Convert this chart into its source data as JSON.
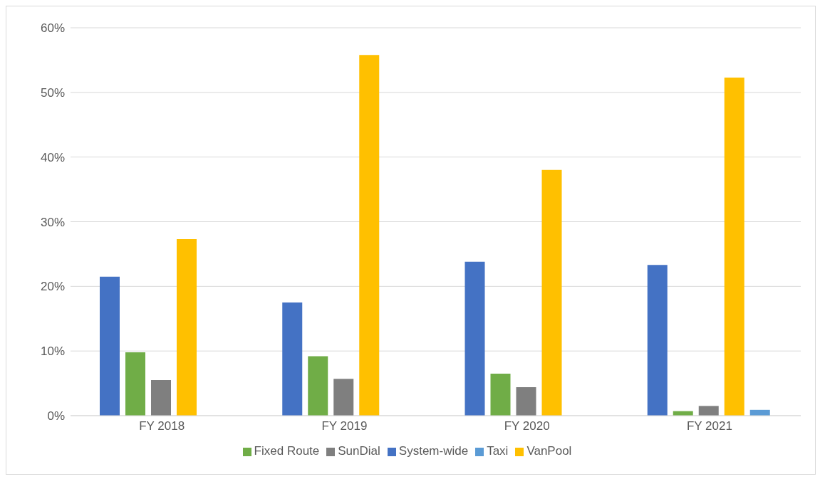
{
  "chart_data": {
    "type": "bar",
    "categories": [
      "FY 2018",
      "FY 2019",
      "FY 2020",
      "FY 2021"
    ],
    "series": [
      {
        "name": "System-wide",
        "color": "#4472c4",
        "values": [
          21.5,
          17.5,
          23.8,
          23.3
        ]
      },
      {
        "name": "Fixed Route",
        "color": "#70ad47",
        "values": [
          9.8,
          9.2,
          6.5,
          0.7
        ]
      },
      {
        "name": "SunDial",
        "color": "#7f7f7f",
        "values": [
          5.5,
          5.7,
          4.4,
          1.5
        ]
      },
      {
        "name": "VanPool",
        "color": "#ffc000",
        "values": [
          27.3,
          55.8,
          38.0,
          52.3
        ]
      },
      {
        "name": "Taxi",
        "color": "#5b9bd5",
        "values": [
          null,
          null,
          null,
          0.9
        ]
      }
    ],
    "ylim": [
      0,
      60
    ],
    "yticks": [
      {
        "value": 0,
        "label": "0%"
      },
      {
        "value": 10,
        "label": "10%"
      },
      {
        "value": 20,
        "label": "20%"
      },
      {
        "value": 30,
        "label": "30%"
      },
      {
        "value": 40,
        "label": "40%"
      },
      {
        "value": 50,
        "label": "50%"
      },
      {
        "value": 60,
        "label": "60%"
      }
    ],
    "grid": "y",
    "legend": "bottom"
  }
}
